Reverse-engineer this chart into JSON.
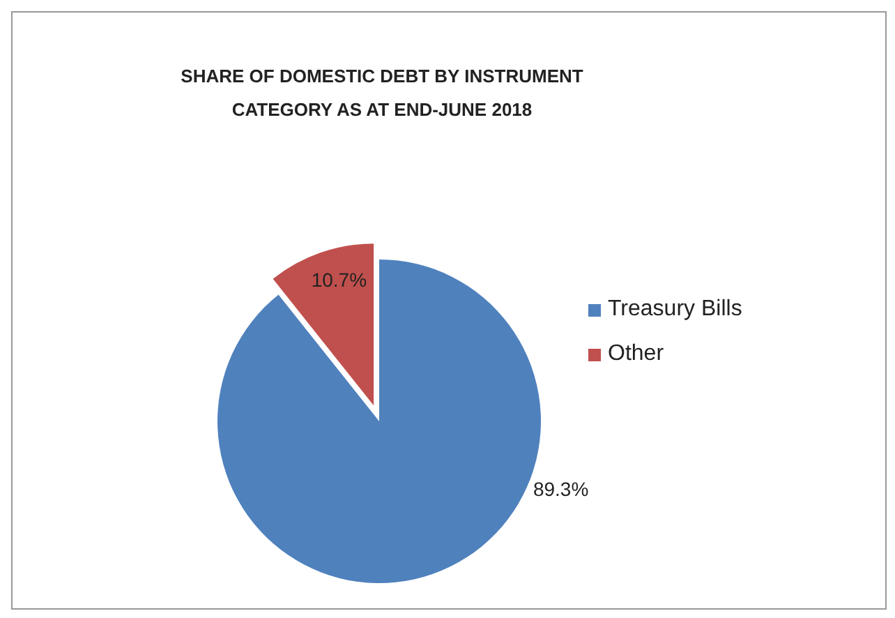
{
  "chart_data": {
    "type": "pie",
    "title": "SHARE OF DOMESTIC DEBT BY INSTRUMENT CATEGORY AS AT END-JUNE 2018",
    "categories": [
      "Treasury Bills",
      "Other"
    ],
    "values": [
      89.3,
      10.7
    ],
    "colors": [
      "#4f81bd",
      "#c0504d"
    ],
    "value_labels": [
      "89.3%",
      "10.7%"
    ],
    "legend": "right"
  }
}
